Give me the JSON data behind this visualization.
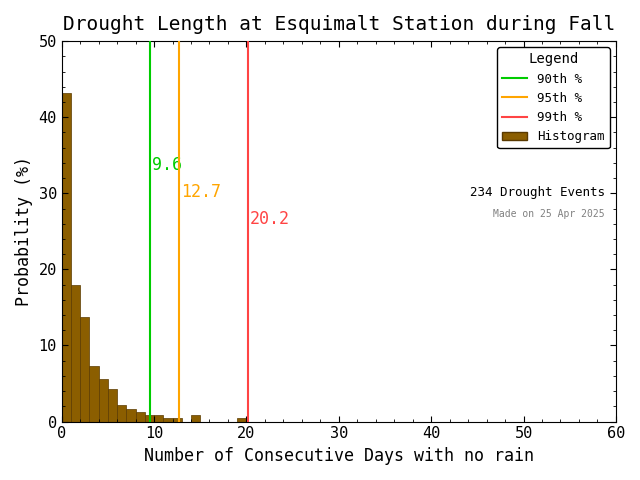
{
  "title": "Drought Length at Esquimalt Station during Fall",
  "xlabel": "Number of Consecutive Days with no rain",
  "ylabel": "Probability (%)",
  "xlim": [
    0,
    60
  ],
  "ylim": [
    0,
    50
  ],
  "xticks": [
    0,
    10,
    20,
    30,
    40,
    50,
    60
  ],
  "yticks": [
    0,
    10,
    20,
    30,
    40,
    50
  ],
  "bar_color": "#8B5E00",
  "bar_edgecolor": "#5A3A00",
  "bar_values": [
    43.16,
    17.95,
    13.68,
    7.26,
    5.56,
    4.27,
    2.14,
    1.71,
    1.28,
    0.85,
    0.85,
    0.43,
    0.43,
    0.0,
    0.85,
    0.0,
    0.0,
    0.0,
    0.0,
    0.43,
    0.0,
    0.0,
    0.0,
    0.0,
    0.0,
    0.0,
    0.0,
    0.0,
    0.0,
    0.0,
    0.0,
    0.0,
    0.0,
    0.0,
    0.0,
    0.0,
    0.0,
    0.0,
    0.0,
    0.0,
    0.0,
    0.0,
    0.0,
    0.0,
    0.0,
    0.0,
    0.0,
    0.0,
    0.0,
    0.0,
    0.0,
    0.0,
    0.0,
    0.0,
    0.0,
    0.0,
    0.0,
    0.0,
    0.0,
    0.0
  ],
  "percentile_90": 9.6,
  "percentile_95": 12.7,
  "percentile_99": 20.2,
  "color_90": "#00CC00",
  "color_95": "#FFA500",
  "color_99": "#FF4444",
  "n_events": 234,
  "made_on": "Made on 25 Apr 2025",
  "legend_title": "Legend",
  "background_color": "#ffffff",
  "title_fontsize": 14,
  "axis_fontsize": 12,
  "tick_fontsize": 11,
  "annotation_fontsize": 12
}
